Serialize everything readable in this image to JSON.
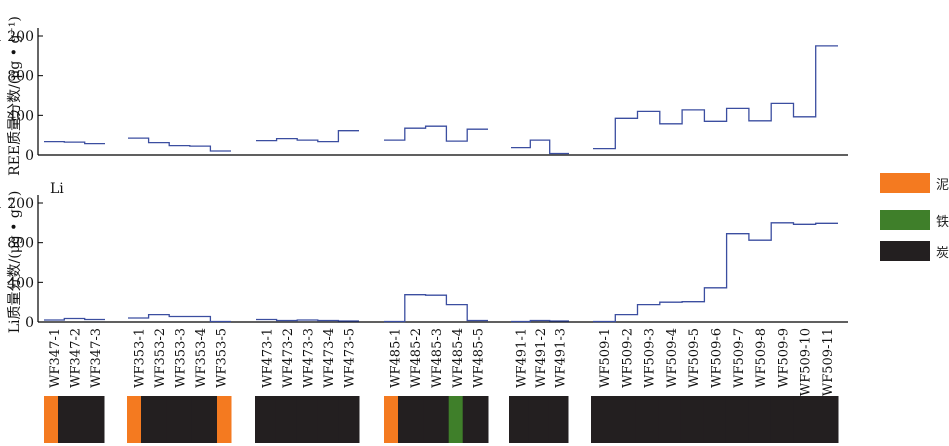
{
  "chart_data": [
    {
      "type": "line",
      "step": true,
      "ylabel": "REE质量分数/(μg • g⁻¹)",
      "ylim": [
        0,
        1200
      ],
      "yticks": [
        "0",
        "400",
        "800",
        "1 200"
      ],
      "groups": [
        {
          "labels": [
            "WF347-1",
            "WF347-2",
            "WF347-3"
          ],
          "values": [
            135,
            130,
            115
          ]
        },
        {
          "labels": [
            "WF353-1",
            "WF353-2",
            "WF353-3",
            "WF353-4",
            "WF353-5"
          ],
          "values": [
            170,
            125,
            95,
            90,
            40
          ]
        },
        {
          "labels": [
            "WF473-1",
            "WF473-2",
            "WF473-3",
            "WF473-4",
            "WF473-5"
          ],
          "values": [
            145,
            165,
            150,
            135,
            245
          ]
        },
        {
          "labels": [
            "WF485-1",
            "WF485-2",
            "WF485-3",
            "WF485-4",
            "WF485-5"
          ],
          "values": [
            150,
            270,
            290,
            140,
            260
          ]
        },
        {
          "labels": [
            "WF491-1",
            "WF491-2",
            "WF491-3"
          ],
          "values": [
            75,
            150,
            15
          ]
        },
        {
          "labels": [
            "WF509-1",
            "WF509-2",
            "WF509-3",
            "WF509-4",
            "WF509-5",
            "WF509-6",
            "WF509-7",
            "WF509-8",
            "WF509-9",
            "WF509-10",
            "WF509-11"
          ],
          "values": [
            65,
            370,
            440,
            315,
            455,
            340,
            470,
            345,
            520,
            385,
            1100
          ]
        }
      ]
    },
    {
      "type": "line",
      "step": true,
      "title": "Li",
      "ylabel": "Li质量分数/(μg • g⁻¹)",
      "ylim": [
        0,
        1200
      ],
      "yticks": [
        "0",
        "400",
        "800",
        "1 200"
      ],
      "groups": [
        {
          "labels": [
            "WF347-1",
            "WF347-2",
            "WF347-3"
          ],
          "values": [
            20,
            35,
            25
          ]
        },
        {
          "labels": [
            "WF353-1",
            "WF353-2",
            "WF353-3",
            "WF353-4",
            "WF353-5"
          ],
          "values": [
            40,
            75,
            55,
            55,
            5
          ]
        },
        {
          "labels": [
            "WF473-1",
            "WF473-2",
            "WF473-3",
            "WF473-4",
            "WF473-5"
          ],
          "values": [
            25,
            15,
            20,
            15,
            10
          ]
        },
        {
          "labels": [
            "WF485-1",
            "WF485-2",
            "WF485-3",
            "WF485-4",
            "WF485-5"
          ],
          "values": [
            5,
            275,
            270,
            175,
            15
          ]
        },
        {
          "labels": [
            "WF491-1",
            "WF491-2",
            "WF491-3"
          ],
          "values": [
            5,
            15,
            10
          ]
        },
        {
          "labels": [
            "WF509-1",
            "WF509-2",
            "WF509-3",
            "WF509-4",
            "WF509-5",
            "WF509-6",
            "WF509-7",
            "WF509-8",
            "WF509-9",
            "WF509-10",
            "WF509-11"
          ],
          "values": [
            5,
            75,
            175,
            200,
            205,
            345,
            890,
            825,
            1000,
            985,
            995
          ]
        }
      ]
    }
  ],
  "lithology": [
    [
      "泥质灰岩",
      "炭质泥岩",
      "炭质泥岩"
    ],
    [
      "泥质灰岩",
      "炭质泥岩",
      "炭质泥岩",
      "炭质泥岩",
      "泥质灰岩"
    ],
    [
      "炭质泥岩",
      "炭质泥岩",
      "炭质泥岩",
      "炭质泥岩",
      "炭质泥岩"
    ],
    [
      "泥质灰岩",
      "炭质泥岩",
      "炭质泥岩",
      "铁铝岩",
      "炭质泥岩"
    ],
    [
      "炭质泥岩",
      "炭质泥岩",
      "炭质泥岩"
    ],
    [
      "炭质泥岩",
      "炭质泥岩",
      "炭质泥岩",
      "炭质泥岩",
      "炭质泥岩",
      "炭质泥岩",
      "炭质泥岩",
      "炭质泥岩",
      "炭质泥岩",
      "炭质泥岩",
      "炭质泥岩"
    ]
  ],
  "legend": [
    {
      "label": "泥质灰岩",
      "color": "#f47a20"
    },
    {
      "label": "铁铝岩",
      "color": "#3f7f2a"
    },
    {
      "label": "炭质泥岩",
      "color": "#231f20"
    }
  ],
  "colors": {
    "line": "#3b4ea0",
    "axis": "#000000"
  }
}
